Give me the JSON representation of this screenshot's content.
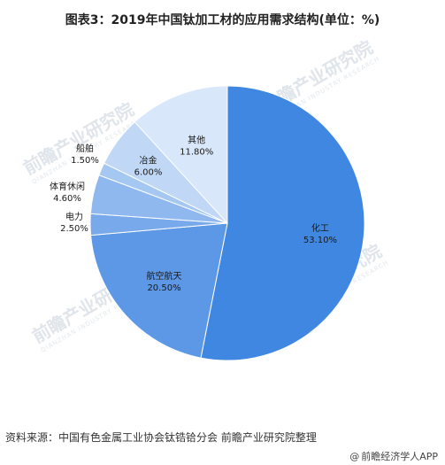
{
  "title": "图表3：2019年中国钛加工材的应用需求结构(单位：%)",
  "chart_data": {
    "type": "pie",
    "title": "图表3：2019年中国钛加工材的应用需求结构(单位：%)",
    "slices": [
      {
        "label": "化工",
        "value": 53.1,
        "display": "53.10%",
        "color": "#3f87e0"
      },
      {
        "label": "航空航天",
        "value": 20.5,
        "display": "20.50%",
        "color": "#5c98e6"
      },
      {
        "label": "电力",
        "value": 2.5,
        "display": "2.50%",
        "color": "#78a9ea"
      },
      {
        "label": "体育休闲",
        "value": 4.6,
        "display": "4.60%",
        "color": "#8fb8ee"
      },
      {
        "label": "船舶",
        "value": 1.5,
        "display": "1.50%",
        "color": "#a5c8f2"
      },
      {
        "label": "冶金",
        "value": 6.0,
        "display": "6.00%",
        "color": "#c0d8f6"
      },
      {
        "label": "其他",
        "value": 11.8,
        "display": "11.80%",
        "color": "#d8e7f9"
      }
    ]
  },
  "watermark": {
    "text": "前瞻产业研究院",
    "sub": "QIANZHAN INDUSTRY RESEARCH"
  },
  "footer": {
    "source": "资料来源：中国有色金属工业协会钛锆铪分会 前瞻产业研究院整理",
    "brand": "前瞻经济学人APP",
    "brand_icon": "at-sign-icon"
  }
}
